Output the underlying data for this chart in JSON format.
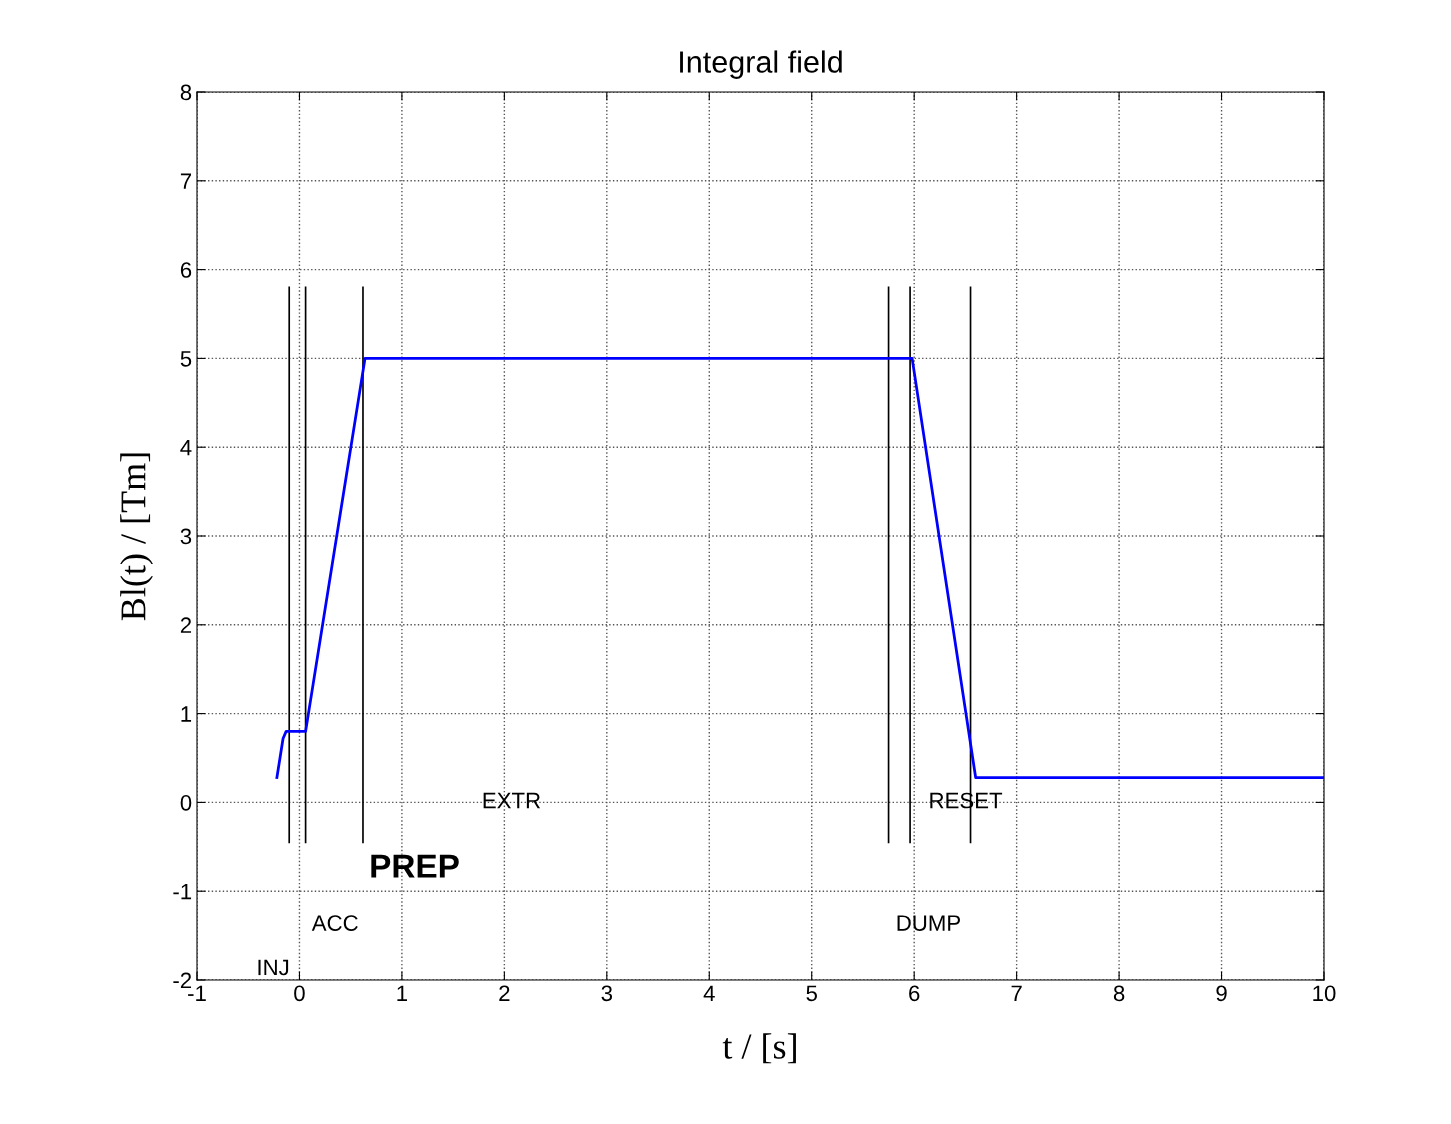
{
  "chart_data": {
    "type": "line",
    "title": "Integral field",
    "xlabel": "t / [s]",
    "ylabel": "Bl(t) / [Tm]",
    "x": [
      -0.22,
      -0.19,
      -0.16,
      -0.13,
      -0.1,
      0.06,
      0.64,
      5.98,
      6.6,
      10
    ],
    "series": [
      {
        "color": "#0000ff",
        "values": [
          0.28,
          0.5,
          0.72,
          0.8,
          0.8,
          0.8,
          5,
          5,
          0.28,
          0.28
        ]
      }
    ],
    "xlim": [
      -1,
      10
    ],
    "xticks": [
      -1,
      0,
      1,
      2,
      3,
      4,
      5,
      6,
      7,
      8,
      9,
      10
    ],
    "ylim": [
      -2,
      8
    ],
    "yticks": [
      -2,
      -1,
      0,
      1,
      2,
      3,
      4,
      5,
      6,
      7,
      8
    ],
    "grid": true,
    "line_style": "solid",
    "marker": "none",
    "ref_lines": [
      {
        "axis": "x",
        "value": -0.1,
        "color": "#000000"
      },
      {
        "axis": "x",
        "value": 0.06,
        "color": "#000000"
      },
      {
        "axis": "x",
        "value": 0.62,
        "color": "#000000"
      },
      {
        "axis": "x",
        "value": 5.75,
        "color": "#000000"
      },
      {
        "axis": "x",
        "value": 5.96,
        "color": "#000000"
      },
      {
        "axis": "x",
        "value": 6.55,
        "color": "#000000"
      }
    ],
    "annotations": [
      "INJ",
      "ACC",
      "PREP",
      "EXTR",
      "DUMP",
      "RESET"
    ]
  }
}
